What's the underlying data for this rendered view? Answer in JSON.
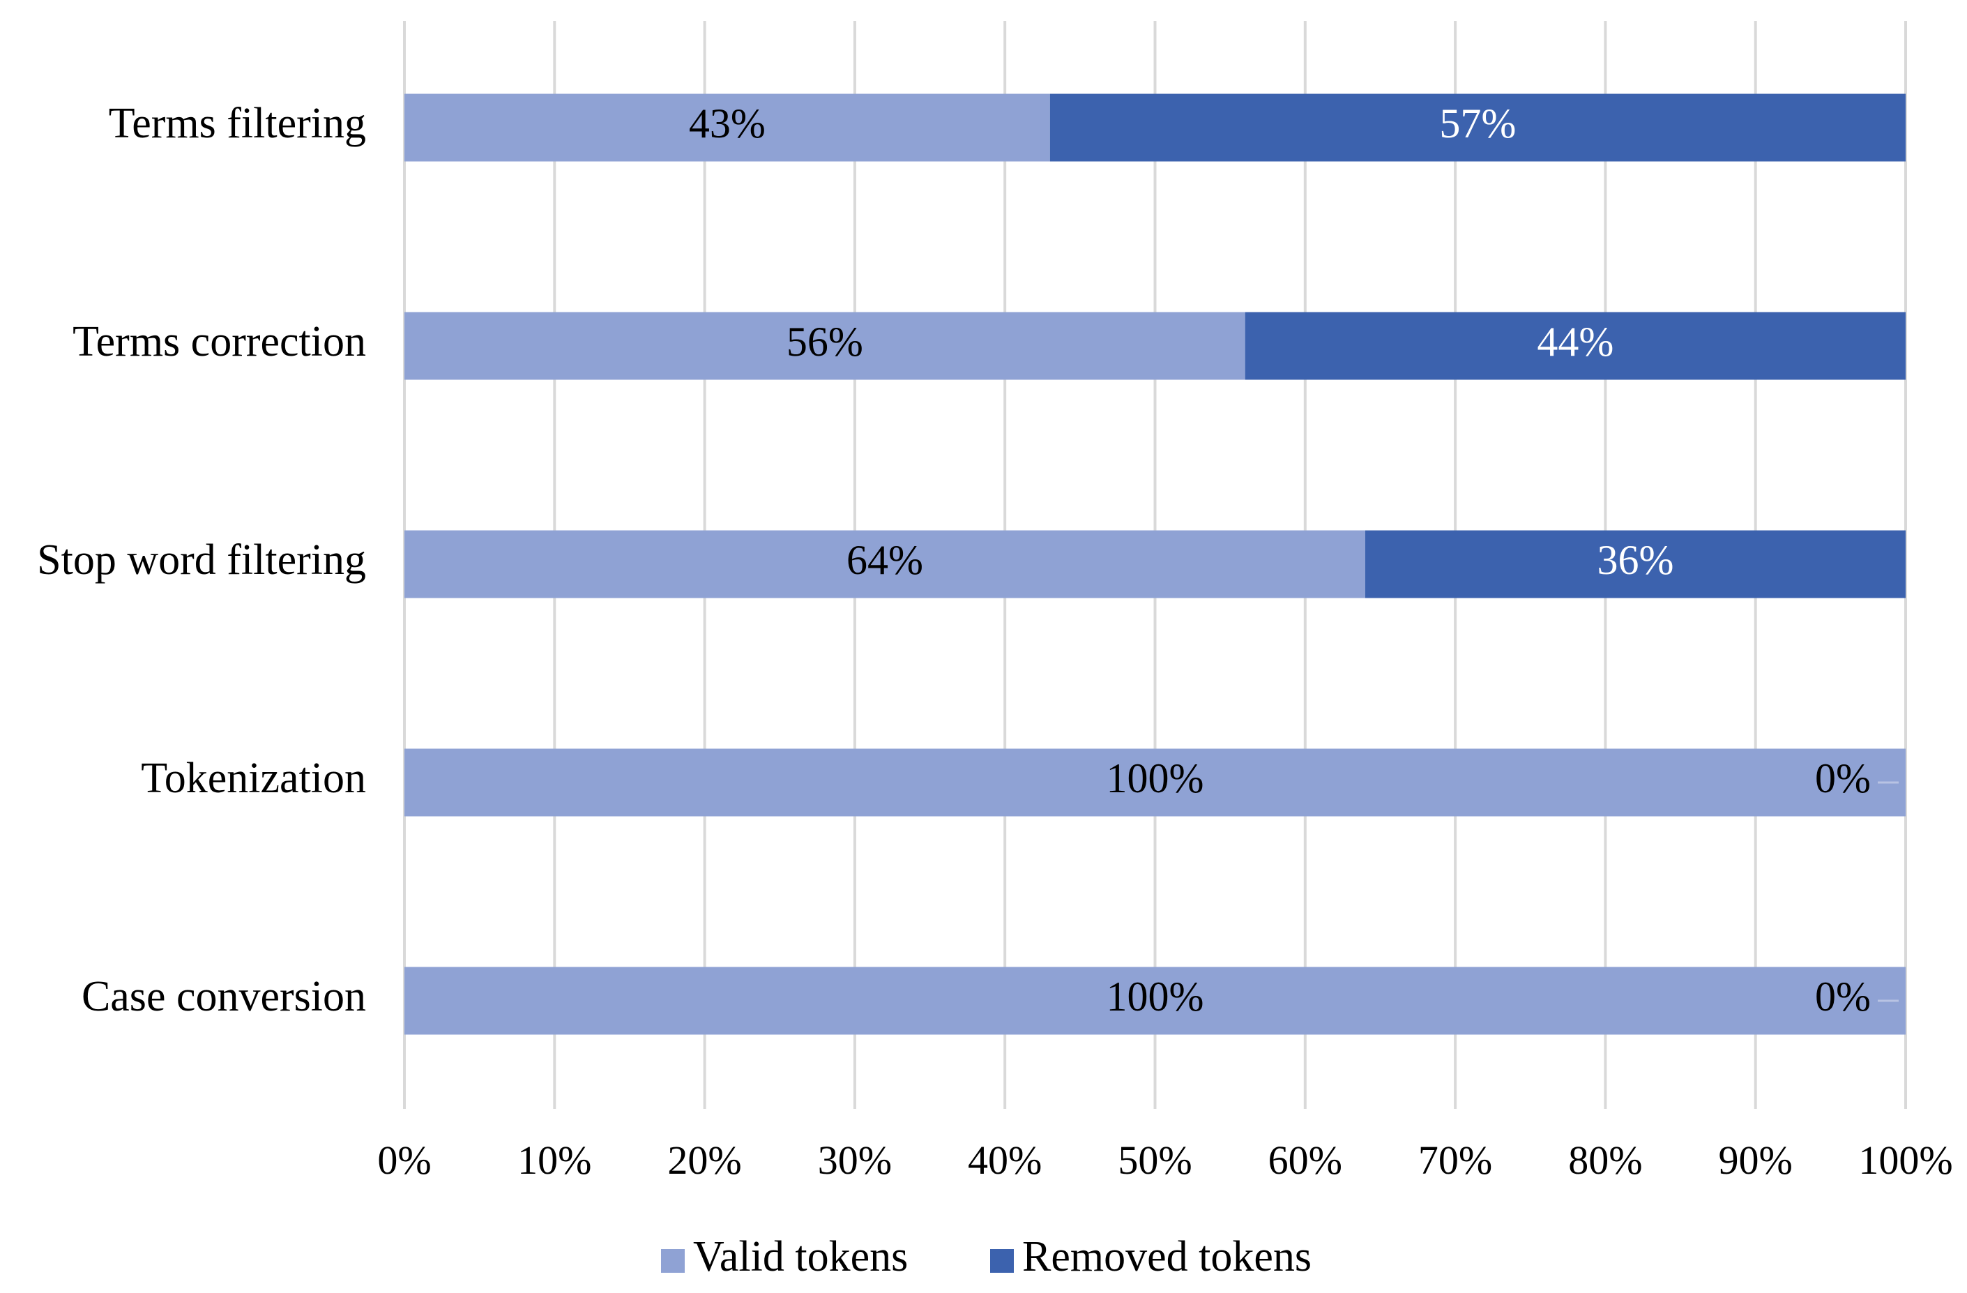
{
  "chart_data": {
    "type": "bar",
    "orientation": "horizontal",
    "stacked": "percent",
    "title": "",
    "xlabel": "",
    "ylabel": "",
    "categories": [
      "Terms filtering",
      "Terms correction",
      "Stop word filtering",
      "Tokenization",
      "Case conversion"
    ],
    "series": [
      {
        "name": "Valid tokens",
        "color": "#8FA2D4",
        "values": [
          43,
          56,
          64,
          100,
          100
        ],
        "labels": [
          "43%",
          "56%",
          "64%",
          "100%",
          "100%"
        ],
        "label_color": "#000000"
      },
      {
        "name": "Removed tokens",
        "color": "#3C62AE",
        "values": [
          57,
          44,
          36,
          0,
          0
        ],
        "labels": [
          "57%",
          "44%",
          "36%",
          "0%",
          "0%"
        ],
        "label_color": "#ffffff"
      }
    ],
    "xlim": [
      0,
      100
    ],
    "xticks": [
      0,
      10,
      20,
      30,
      40,
      50,
      60,
      70,
      80,
      90,
      100
    ],
    "xtick_labels": [
      "0%",
      "10%",
      "20%",
      "30%",
      "40%",
      "50%",
      "60%",
      "70%",
      "80%",
      "90%",
      "100%"
    ],
    "grid": true,
    "gridline_color": "#d9d9d9",
    "legend_position": "bottom-center"
  }
}
